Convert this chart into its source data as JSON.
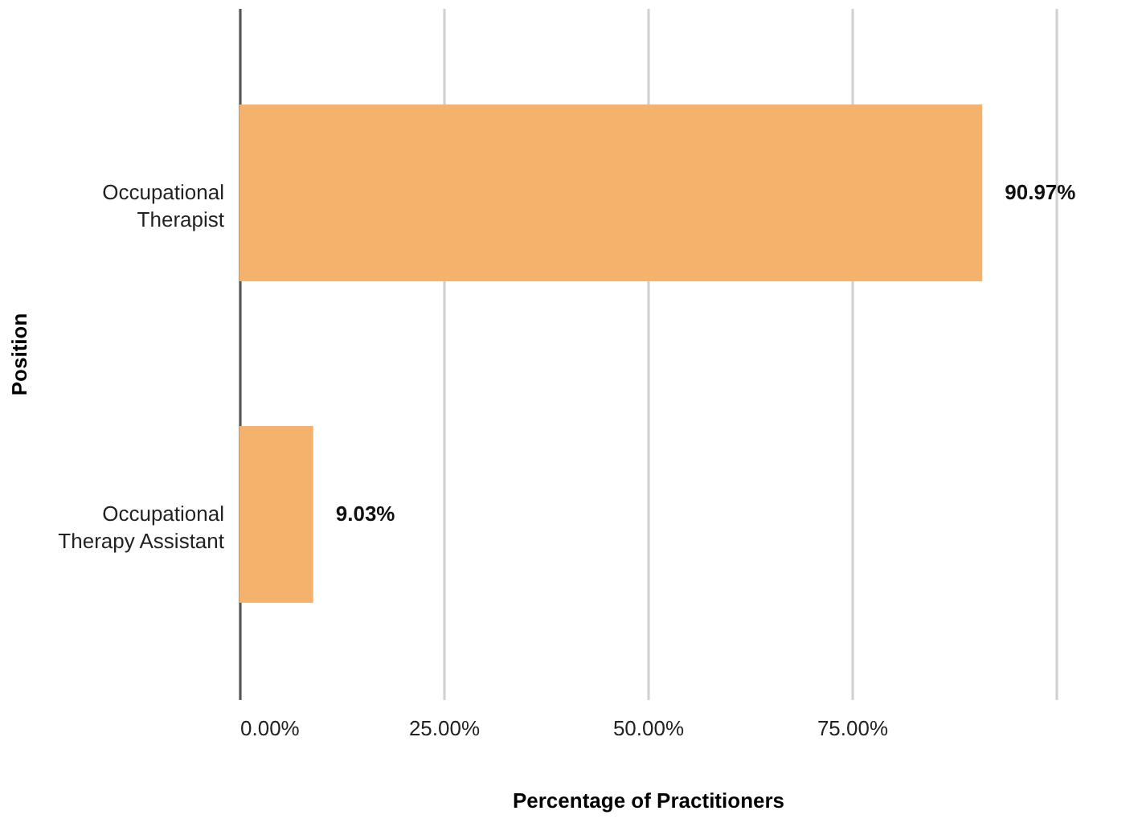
{
  "chart_data": {
    "type": "bar",
    "orientation": "horizontal",
    "xlabel": "Percentage of Practitioners",
    "ylabel": "Position",
    "categories": [
      "Occupational Therapist",
      "Occupational Therapy Assistant"
    ],
    "values": [
      90.97,
      9.03
    ],
    "color": "#f4b26c",
    "value_labels": [
      "90.97%",
      "9.03%"
    ],
    "xlim": [
      0,
      100
    ],
    "xticks": [
      {
        "value": 0,
        "label": "0.00%"
      },
      {
        "value": 25,
        "label": "25.00%"
      },
      {
        "value": 50,
        "label": "50.00%"
      },
      {
        "value": 75,
        "label": "75.00%"
      },
      {
        "value": 100,
        "label": null
      }
    ],
    "grid": "x"
  }
}
